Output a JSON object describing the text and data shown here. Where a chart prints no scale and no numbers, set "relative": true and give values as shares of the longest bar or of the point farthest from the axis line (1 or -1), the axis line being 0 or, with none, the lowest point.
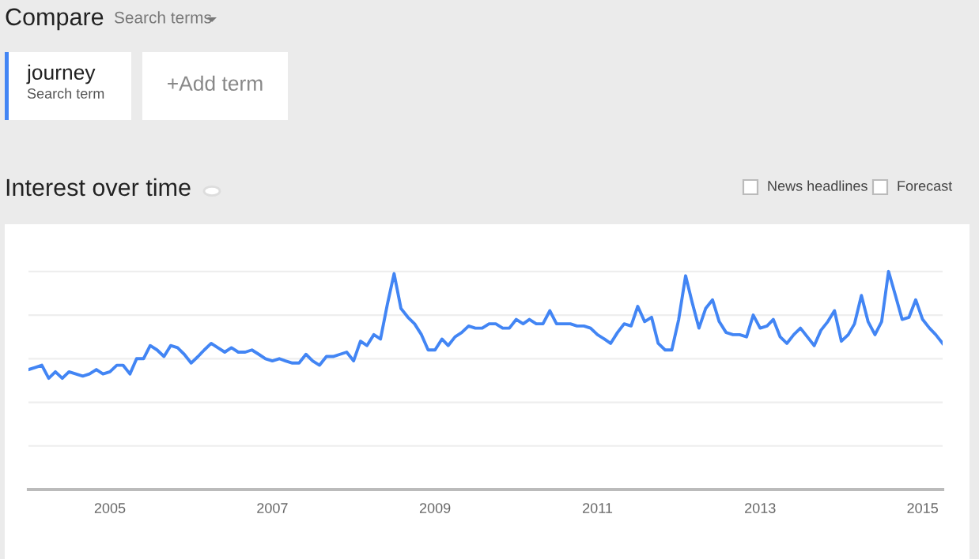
{
  "chart_data": {
    "type": "line",
    "title": "Interest over time",
    "relative": true,
    "grid": "y",
    "legend": "top left",
    "marker": "none",
    "line_style": "solid",
    "annotations": [
      "Compare",
      "Search terms",
      "Search term",
      "+Add term",
      "News headlines",
      "Forecast"
    ],
    "x": [
      "2004-01",
      "2004-02",
      "2004-03",
      "2004-04",
      "2004-05",
      "2004-06",
      "2004-07",
      "2004-08",
      "2004-09",
      "2004-10",
      "2004-11",
      "2004-12",
      "2005-01",
      "2005-02",
      "2005-03",
      "2005-04",
      "2005-05",
      "2005-06",
      "2005-07",
      "2005-08",
      "2005-09",
      "2005-10",
      "2005-11",
      "2005-12",
      "2006-01",
      "2006-02",
      "2006-03",
      "2006-04",
      "2006-05",
      "2006-06",
      "2006-07",
      "2006-08",
      "2006-09",
      "2006-10",
      "2006-11",
      "2006-12",
      "2007-01",
      "2007-02",
      "2007-03",
      "2007-04",
      "2007-05",
      "2007-06",
      "2007-07",
      "2007-08",
      "2007-09",
      "2007-10",
      "2007-11",
      "2007-12",
      "2008-01",
      "2008-02",
      "2008-03",
      "2008-04",
      "2008-05",
      "2008-06",
      "2008-07",
      "2008-08",
      "2008-09",
      "2008-10",
      "2008-11",
      "2008-12",
      "2009-01",
      "2009-02",
      "2009-03",
      "2009-04",
      "2009-05",
      "2009-06",
      "2009-07",
      "2009-08",
      "2009-09",
      "2009-10",
      "2009-11",
      "2009-12",
      "2010-01",
      "2010-02",
      "2010-03",
      "2010-04",
      "2010-05",
      "2010-06",
      "2010-07",
      "2010-08",
      "2010-09",
      "2010-10",
      "2010-11",
      "2010-12",
      "2011-01",
      "2011-02",
      "2011-03",
      "2011-04",
      "2011-05",
      "2011-06",
      "2011-07",
      "2011-08",
      "2011-09",
      "2011-10",
      "2011-11",
      "2011-12",
      "2012-01",
      "2012-02",
      "2012-03",
      "2012-04",
      "2012-05",
      "2012-06",
      "2012-07",
      "2012-08",
      "2012-09",
      "2012-10",
      "2012-11",
      "2012-12",
      "2013-01",
      "2013-02",
      "2013-03",
      "2013-04",
      "2013-05",
      "2013-06",
      "2013-07",
      "2013-08",
      "2013-09",
      "2013-10",
      "2013-11",
      "2013-12",
      "2014-01",
      "2014-02",
      "2014-03",
      "2014-04",
      "2014-05",
      "2014-06",
      "2014-07",
      "2014-08",
      "2014-09",
      "2014-10",
      "2014-11",
      "2014-12",
      "2015-01",
      "2015-02",
      "2015-03",
      "2015-04"
    ],
    "xlim": [
      "2004-01",
      "2015-04"
    ],
    "xticks": [
      {
        "value": "2005-01",
        "label": "2005"
      },
      {
        "value": "2007-01",
        "label": "2007"
      },
      {
        "value": "2009-01",
        "label": "2009"
      },
      {
        "value": "2011-01",
        "label": "2011"
      },
      {
        "value": "2013-01",
        "label": "2013"
      },
      {
        "value": "2015-01",
        "label": "2015"
      }
    ],
    "series": [
      {
        "name": "journey",
        "color": "#4285f4",
        "values": [
          0.55,
          0.56,
          0.57,
          0.51,
          0.54,
          0.51,
          0.54,
          0.53,
          0.52,
          0.53,
          0.55,
          0.53,
          0.54,
          0.57,
          0.57,
          0.53,
          0.6,
          0.6,
          0.66,
          0.64,
          0.61,
          0.66,
          0.65,
          0.62,
          0.58,
          0.61,
          0.64,
          0.67,
          0.65,
          0.63,
          0.65,
          0.63,
          0.63,
          0.64,
          0.62,
          0.6,
          0.59,
          0.6,
          0.59,
          0.58,
          0.58,
          0.62,
          0.59,
          0.57,
          0.61,
          0.61,
          0.62,
          0.63,
          0.59,
          0.68,
          0.66,
          0.71,
          0.69,
          0.85,
          0.99,
          0.83,
          0.79,
          0.76,
          0.71,
          0.64,
          0.64,
          0.69,
          0.66,
          0.7,
          0.72,
          0.75,
          0.74,
          0.74,
          0.76,
          0.76,
          0.74,
          0.74,
          0.78,
          0.76,
          0.78,
          0.76,
          0.76,
          0.82,
          0.76,
          0.76,
          0.76,
          0.75,
          0.75,
          0.74,
          0.71,
          0.69,
          0.67,
          0.72,
          0.76,
          0.75,
          0.84,
          0.77,
          0.79,
          0.67,
          0.64,
          0.64,
          0.78,
          0.98,
          0.86,
          0.74,
          0.83,
          0.87,
          0.77,
          0.72,
          0.71,
          0.71,
          0.7,
          0.8,
          0.74,
          0.75,
          0.78,
          0.7,
          0.67,
          0.71,
          0.74,
          0.7,
          0.66,
          0.73,
          0.77,
          0.82,
          0.68,
          0.71,
          0.76,
          0.89,
          0.77,
          0.71,
          0.77,
          1.0,
          0.89,
          0.78,
          0.79,
          0.87,
          0.78,
          0.74,
          0.71,
          0.67
        ]
      }
    ]
  }
}
